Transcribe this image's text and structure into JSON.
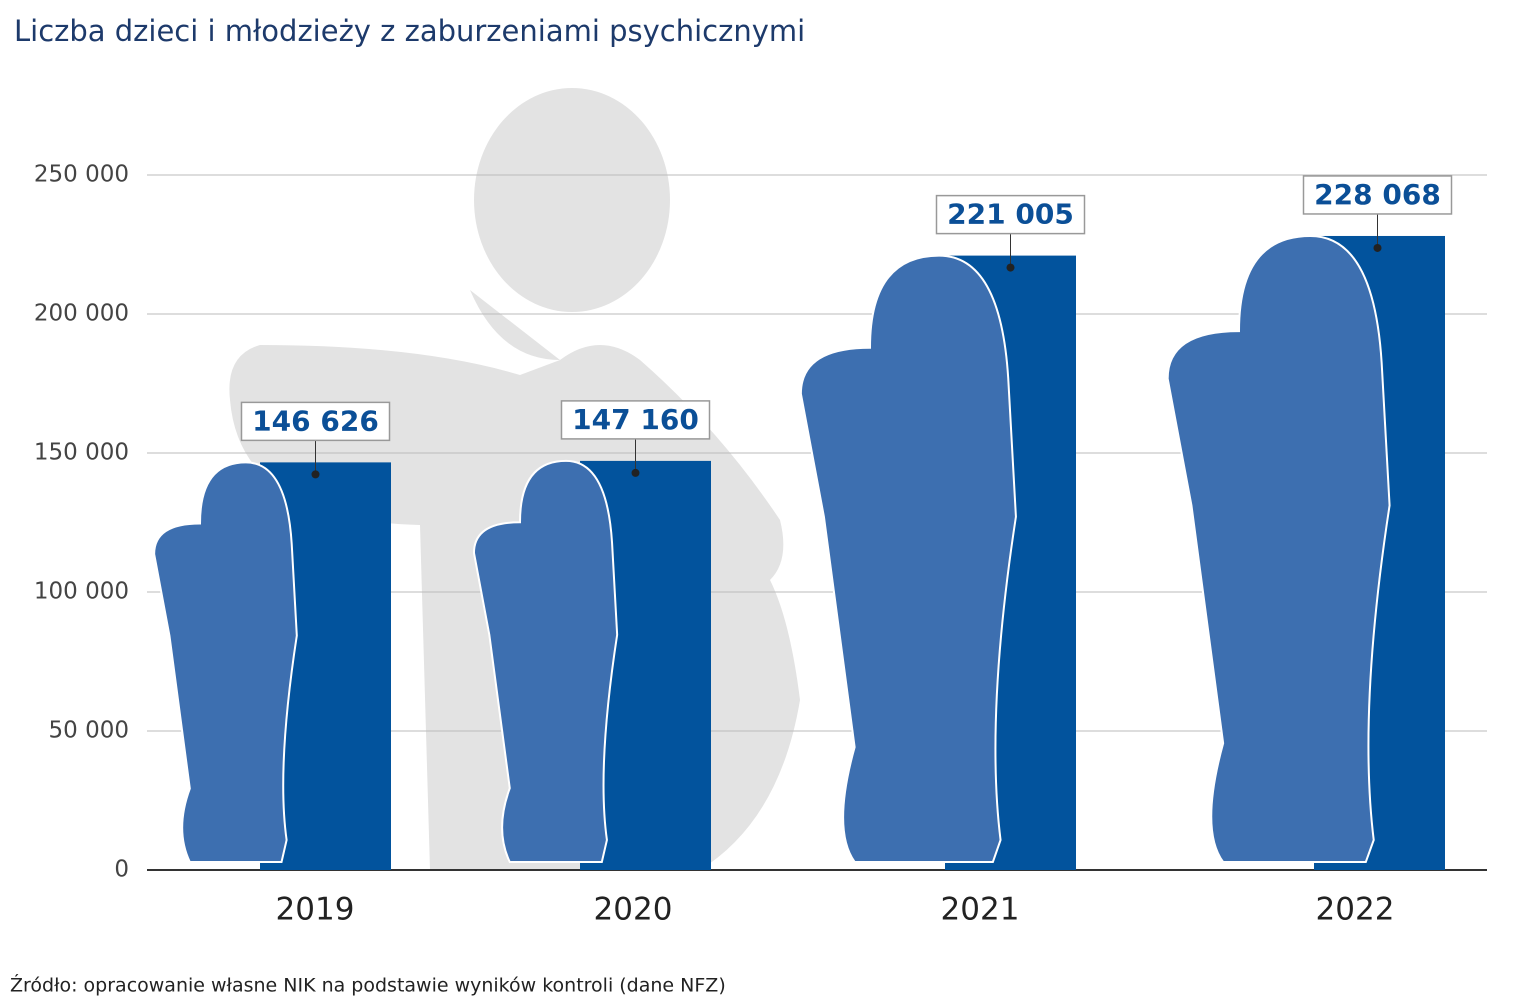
{
  "chart_data": {
    "type": "bar",
    "title": "Liczba dzieci i młodzieży z zaburzeniami psychicznymi",
    "source": "Źródło: opracowanie własne NIK na podstawie wyników kontroli (dane NFZ)",
    "categories": [
      "2019",
      "2020",
      "2021",
      "2022"
    ],
    "values": [
      146626,
      147160,
      221005,
      228068
    ],
    "value_labels": [
      "146 626",
      "147 160",
      "221 005",
      "228 068"
    ],
    "color": "#02539d",
    "ylim": [
      0,
      250000
    ],
    "yticks": [
      {
        "value": 0,
        "label": "0"
      },
      {
        "value": 50000,
        "label": "50 000"
      },
      {
        "value": 100000,
        "label": "100 000"
      },
      {
        "value": 150000,
        "label": "150 000"
      },
      {
        "value": 200000,
        "label": "200 000"
      },
      {
        "value": 250000,
        "label": "250 000"
      }
    ],
    "grid": true
  }
}
